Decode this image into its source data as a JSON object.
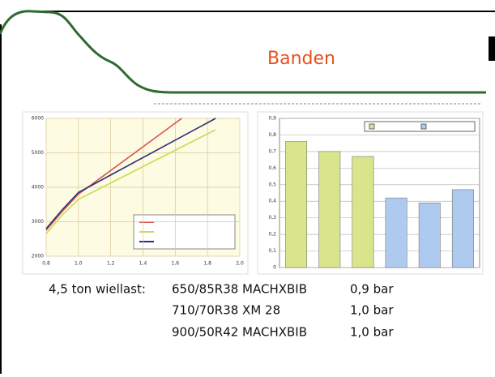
{
  "title": "Banden",
  "wheel_load": {
    "label": "4,5 ton wiellast:",
    "rows": [
      {
        "tire": "650/85R38 MACHXBIB",
        "pressure": "0,9 bar"
      },
      {
        "tire": "710/70R38 XM 28",
        "pressure": "1,0 bar"
      },
      {
        "tire": "900/50R42 MACHXBIB",
        "pressure": "1,0 bar"
      }
    ]
  },
  "chart_data": [
    {
      "type": "line",
      "xlim": [
        0.8,
        2.0
      ],
      "xticks": [
        {
          "value": 0.8,
          "label": "0,8"
        },
        {
          "value": 1.0,
          "label": "1,0"
        },
        {
          "value": 1.2,
          "label": "1,2"
        },
        {
          "value": 1.4,
          "label": "1,4"
        },
        {
          "value": 1.6,
          "label": "1,6"
        },
        {
          "value": 1.8,
          "label": "1,8"
        },
        {
          "value": 2.0,
          "label": "2,0"
        }
      ],
      "ylim": [
        2000,
        6000
      ],
      "yticks": [
        2000,
        3000,
        4000,
        5000,
        6000
      ],
      "grid": true,
      "series": [
        {
          "color": "#d9534f",
          "x": [
            0.8,
            0.9,
            1.0,
            1.64
          ],
          "values": [
            2750,
            3300,
            3800,
            6000
          ]
        },
        {
          "color": "#c8dc5a",
          "x": [
            0.8,
            0.9,
            1.0,
            1.85
          ],
          "values": [
            2650,
            3200,
            3650,
            5670
          ]
        },
        {
          "color": "#2a2f7a",
          "x": [
            0.8,
            0.9,
            1.0,
            1.85
          ],
          "values": [
            2800,
            3350,
            3850,
            6000
          ]
        }
      ]
    },
    {
      "type": "bar",
      "categories": [
        null,
        null,
        null,
        null,
        null,
        null
      ],
      "values": [
        0.76,
        0.7,
        0.67,
        0.42,
        0.39,
        0.47
      ],
      "colors": [
        "#d8e58c",
        "#d8e58c",
        "#d8e58c",
        "#aecbef",
        "#aecbef",
        "#aecbef"
      ],
      "ylim": [
        0,
        0.9
      ],
      "yticks": [
        0,
        {
          "value": 0.1,
          "label": "0,1"
        },
        {
          "value": 0.2,
          "label": "0,2"
        },
        {
          "value": 0.3,
          "label": "0,3"
        },
        {
          "value": 0.4,
          "label": "0,4"
        },
        {
          "value": 0.5,
          "label": "0,5"
        },
        {
          "value": 0.6,
          "label": "0,6"
        },
        {
          "value": 0.7,
          "label": "0,7"
        },
        {
          "value": 0.8,
          "label": "0,8"
        },
        {
          "value": 0.9,
          "label": "0,9"
        }
      ],
      "grid": true
    }
  ]
}
